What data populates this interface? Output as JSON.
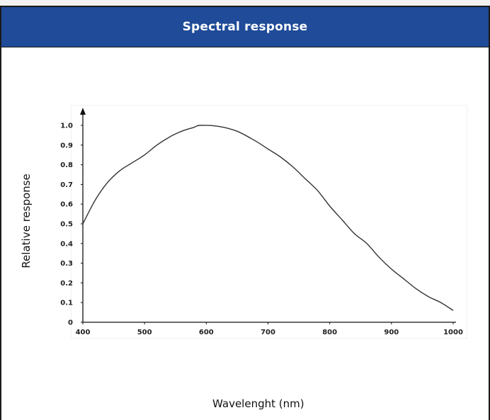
{
  "header": {
    "title": "Spectral response"
  },
  "chart_data": {
    "type": "line",
    "title": "Spectral response",
    "xlabel": "Wavelenght (nm)",
    "ylabel": "Relative response",
    "xlim": [
      400,
      1000
    ],
    "ylim": [
      0,
      1.0
    ],
    "x_ticks": [
      "400",
      "500",
      "600",
      "700",
      "800",
      "900",
      "1000"
    ],
    "y_ticks": [
      "0",
      "0.1",
      "0.2",
      "0.3",
      "0.4",
      "0.5",
      "0.6",
      "0.7",
      "0.8",
      "0.9",
      "1.0"
    ],
    "grid": false,
    "series": [
      {
        "x": [
          400,
          420,
          440,
          460,
          480,
          500,
          520,
          540,
          560,
          580,
          590,
          620,
          650,
          680,
          700,
          720,
          740,
          760,
          780,
          800,
          820,
          840,
          860,
          880,
          900,
          920,
          940,
          960,
          980,
          1000
        ],
        "y": [
          0.5,
          0.62,
          0.71,
          0.77,
          0.81,
          0.85,
          0.9,
          0.94,
          0.97,
          0.99,
          1.0,
          0.995,
          0.97,
          0.92,
          0.88,
          0.84,
          0.79,
          0.73,
          0.67,
          0.59,
          0.52,
          0.45,
          0.4,
          0.33,
          0.27,
          0.22,
          0.17,
          0.13,
          0.1,
          0.06
        ]
      }
    ],
    "colors": {
      "line": "#333333",
      "axis": "#111111"
    }
  }
}
